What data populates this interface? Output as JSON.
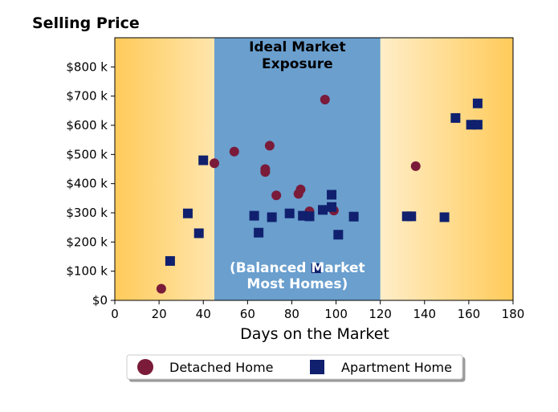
{
  "chart_data": {
    "type": "scatter",
    "title": "Selling Price",
    "xlabel": "Days on the Market",
    "ylabel": "",
    "xlim": [
      0,
      180
    ],
    "ylim": [
      0,
      900
    ],
    "x_ticks": [
      0,
      20,
      40,
      60,
      80,
      100,
      120,
      140,
      160,
      180
    ],
    "y_ticks": [
      0,
      100,
      200,
      300,
      400,
      500,
      600,
      700,
      800
    ],
    "y_tick_labels": [
      "$0",
      "$100 k",
      "$200 k",
      "$300 k",
      "$400 k",
      "$500 k",
      "$600 k",
      "$700 k",
      "$800 k"
    ],
    "grid": false,
    "legend_position": "bottom-center",
    "bands": [
      {
        "x_range": [
          45,
          120
        ],
        "label_top": "Ideal Market\nExposure",
        "label_bottom": "(Balanced Market\nMost Homes)",
        "color": "#6a9fce"
      }
    ],
    "background_gradient": {
      "edge_color": "#ffcb5a",
      "center_color": "#ffffff"
    },
    "series": [
      {
        "name": "Detached Home",
        "marker": "circle",
        "color": "#7a1b3a",
        "points": [
          [
            21,
            40
          ],
          [
            45,
            470
          ],
          [
            54,
            510
          ],
          [
            68,
            450
          ],
          [
            68,
            440
          ],
          [
            70,
            530
          ],
          [
            73,
            360
          ],
          [
            83,
            365
          ],
          [
            84,
            380
          ],
          [
            88,
            305
          ],
          [
            95,
            688
          ],
          [
            99,
            308
          ],
          [
            136,
            460
          ]
        ]
      },
      {
        "name": "Apartment Home",
        "marker": "square",
        "color": "#10206e",
        "points": [
          [
            25,
            135
          ],
          [
            33,
            298
          ],
          [
            38,
            230
          ],
          [
            40,
            480
          ],
          [
            63,
            290
          ],
          [
            65,
            232
          ],
          [
            71,
            285
          ],
          [
            79,
            298
          ],
          [
            85,
            290
          ],
          [
            88,
            288
          ],
          [
            91,
            110
          ],
          [
            94,
            310
          ],
          [
            98,
            320
          ],
          [
            98,
            362
          ],
          [
            101,
            225
          ],
          [
            108,
            287
          ],
          [
            132,
            288
          ],
          [
            134,
            288
          ],
          [
            149,
            285
          ],
          [
            154,
            625
          ],
          [
            161,
            602
          ],
          [
            164,
            602
          ],
          [
            164,
            675
          ]
        ]
      }
    ]
  }
}
